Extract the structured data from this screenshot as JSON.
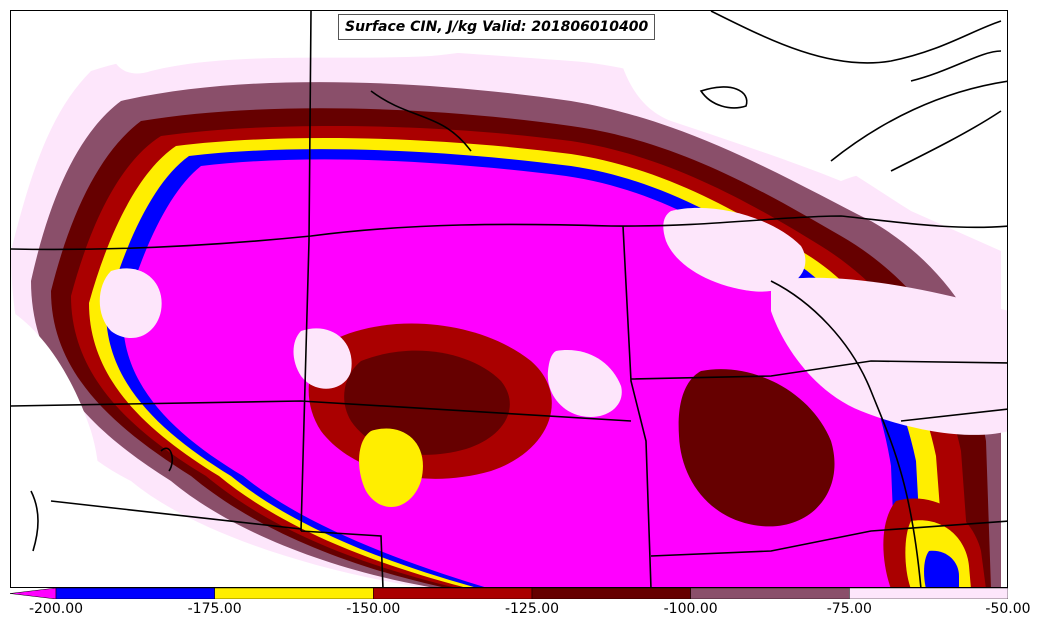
{
  "title": "Surface CIN, J/kg Valid: 201806010400",
  "colorbar": {
    "ticks": [
      "-200.00",
      "-175.00",
      "-150.00",
      "-125.00",
      "-100.00",
      "-75.00",
      "-50.00"
    ],
    "bins": [
      {
        "from": -200,
        "to": -175,
        "color": "#0000ff"
      },
      {
        "from": -175,
        "to": -150,
        "color": "#ffee00"
      },
      {
        "from": -150,
        "to": -125,
        "color": "#aa0000"
      },
      {
        "from": -125,
        "to": -100,
        "color": "#660000"
      },
      {
        "from": -100,
        "to": -75,
        "color": "#8a4f6a"
      },
      {
        "from": -75,
        "to": -50,
        "color": "#fde6fb"
      }
    ],
    "below_min_color": "#ff00ff",
    "range": [
      -200,
      -50
    ]
  },
  "colors": {
    "magenta": "#ff00ff",
    "blue": "#0000ff",
    "yellow": "#ffee00",
    "red": "#aa0000",
    "darkred": "#660000",
    "mauve": "#8a4f6a",
    "pink": "#fde6fb",
    "borders": "#000000"
  }
}
